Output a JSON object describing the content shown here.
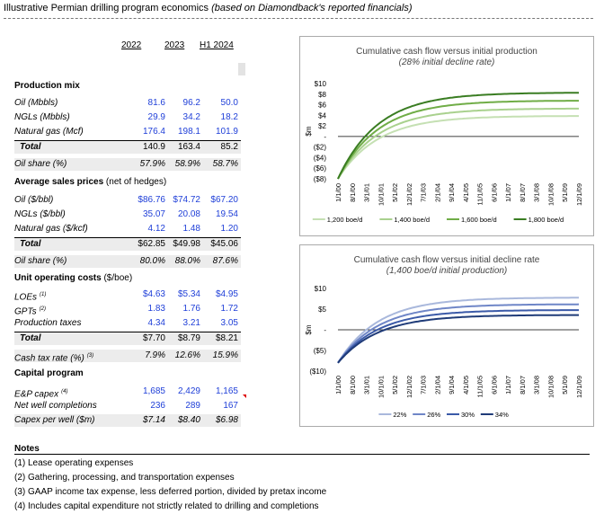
{
  "title": {
    "main": "Illustrative Permian drilling program economics",
    "note": "(based on Diamondback's reported financials)"
  },
  "columns": [
    "2022",
    "2023",
    "H1 2024"
  ],
  "sections": {
    "production": {
      "heading": "Production mix",
      "rows": [
        {
          "label": "Oil (Mbbls)",
          "v": [
            "81.6",
            "96.2",
            "50.0"
          ]
        },
        {
          "label": "NGLs (Mbbls)",
          "v": [
            "29.9",
            "34.2",
            "18.2"
          ]
        },
        {
          "label": "Natural gas (Mcf)",
          "v": [
            "176.4",
            "198.1",
            "101.9"
          ]
        }
      ],
      "total": {
        "label": "Total",
        "v": [
          "140.9",
          "163.4",
          "85.2"
        ]
      },
      "share": {
        "label": "Oil share (%)",
        "v": [
          "57.9%",
          "58.9%",
          "58.7%"
        ]
      }
    },
    "prices": {
      "heading": "Average sales prices",
      "heading_note": "(net of hedges)",
      "rows": [
        {
          "label": "Oil ($/bbl)",
          "v": [
            "$86.76",
            "$74.72",
            "$67.20"
          ]
        },
        {
          "label": "NGLs ($/bbl)",
          "v": [
            "35.07",
            "20.08",
            "19.54"
          ]
        },
        {
          "label": "Natural gas ($/kcf)",
          "v": [
            "4.12",
            "1.48",
            "1.20"
          ]
        }
      ],
      "total": {
        "label": "Total",
        "v": [
          "$62.85",
          "$49.98",
          "$45.06"
        ]
      },
      "share": {
        "label": "Oil share (%)",
        "v": [
          "80.0%",
          "88.0%",
          "87.6%"
        ]
      }
    },
    "costs": {
      "heading": "Unit operating costs",
      "heading_note": "($/boe)",
      "rows": [
        {
          "label": "LOEs",
          "sup": "(1)",
          "v": [
            "$4.63",
            "$5.34",
            "$4.95"
          ]
        },
        {
          "label": "GPTs",
          "sup": "(2)",
          "v": [
            "1.83",
            "1.76",
            "1.72"
          ]
        },
        {
          "label": "Production taxes",
          "sup": "",
          "v": [
            "4.34",
            "3.21",
            "3.05"
          ]
        }
      ],
      "total": {
        "label": "Total",
        "v": [
          "$7.70",
          "$8.79",
          "$8.21"
        ]
      },
      "share": {
        "label": "Cash tax rate (%)",
        "sup": "(3)",
        "v": [
          "7.9%",
          "12.6%",
          "15.9%"
        ]
      }
    },
    "capital": {
      "heading": "Capital program",
      "rows": [
        {
          "label": "E&P capex",
          "sup": "(4)",
          "v": [
            "1,685",
            "2,429",
            "1,165"
          ]
        },
        {
          "label": "Net well completions",
          "sup": "",
          "v": [
            "236",
            "289",
            "167"
          ]
        }
      ],
      "share": {
        "label": "Capex per well ($m)",
        "v": [
          "$7.14",
          "$8.40",
          "$6.98"
        ]
      }
    }
  },
  "notes": {
    "heading": "Notes",
    "items": [
      "(1) Lease operating expenses",
      "(2) Gathering, processing, and transportation expenses",
      "(3) GAAP income tax expense, less deferred portion, divided by pretax income",
      "(4) Includes capital expenditure not strictly related to drilling and completions"
    ]
  },
  "chart_data": [
    {
      "type": "line",
      "title": "Cumulative cash flow versus initial production",
      "subtitle": "(28% initial decline rate)",
      "ylabel": "$m",
      "ylim": [
        -8,
        10
      ],
      "y_ticks": [
        10,
        8,
        6,
        4,
        2,
        0,
        -2,
        -4,
        -6,
        -8
      ],
      "y_tick_labels": [
        "$10",
        "$8",
        "$6",
        "$4",
        "$2",
        "-",
        "($2)",
        "($4)",
        "($6)",
        "($8)"
      ],
      "x_ticks": [
        "1/1/00",
        "8/1/00",
        "3/1/01",
        "10/1/01",
        "5/1/02",
        "12/1/02",
        "7/1/03",
        "2/1/04",
        "9/1/04",
        "4/1/05",
        "11/1/05",
        "6/1/06",
        "1/1/07",
        "8/1/07",
        "3/1/08",
        "10/1/08",
        "5/1/09",
        "12/1/09"
      ],
      "legend": "bottom",
      "series": [
        {
          "name": "1,200 boe/d",
          "color": "#c5e0b3",
          "start": -8,
          "end": 3.9,
          "tau": 20
        },
        {
          "name": "1,400 boe/d",
          "color": "#a9d18e",
          "start": -8,
          "end": 5.3,
          "tau": 20
        },
        {
          "name": "1,600 boe/d",
          "color": "#70ad47",
          "start": -8,
          "end": 6.8,
          "tau": 20
        },
        {
          "name": "1,800 boe/d",
          "color": "#3a7d22",
          "start": -8,
          "end": 8.3,
          "tau": 20
        }
      ]
    },
    {
      "type": "line",
      "title": "Cumulative cash flow versus initial decline rate",
      "subtitle": "(1,400 boe/d initial production)",
      "ylabel": "$m",
      "ylim": [
        -10,
        10
      ],
      "y_ticks": [
        10,
        5,
        0,
        -5,
        -10
      ],
      "y_tick_labels": [
        "$10",
        "$5",
        "-",
        "($5)",
        "($10)"
      ],
      "x_ticks": [
        "1/1/00",
        "8/1/00",
        "3/1/01",
        "10/1/01",
        "5/1/02",
        "12/1/02",
        "7/1/03",
        "2/1/04",
        "9/1/04",
        "4/1/05",
        "11/1/05",
        "6/1/06",
        "1/1/07",
        "8/1/07",
        "3/1/08",
        "10/1/08",
        "5/1/09",
        "12/1/09"
      ],
      "legend": "bottom",
      "series": [
        {
          "name": "22%",
          "color": "#a9b8dc",
          "start": -8,
          "end": 7.8,
          "tau": 20
        },
        {
          "name": "26%",
          "color": "#6f86c7",
          "start": -8,
          "end": 6.2,
          "tau": 20
        },
        {
          "name": "30%",
          "color": "#3b5aa8",
          "start": -8,
          "end": 4.8,
          "tau": 20
        },
        {
          "name": "34%",
          "color": "#1f3b78",
          "start": -8,
          "end": 3.6,
          "tau": 20
        }
      ]
    }
  ]
}
